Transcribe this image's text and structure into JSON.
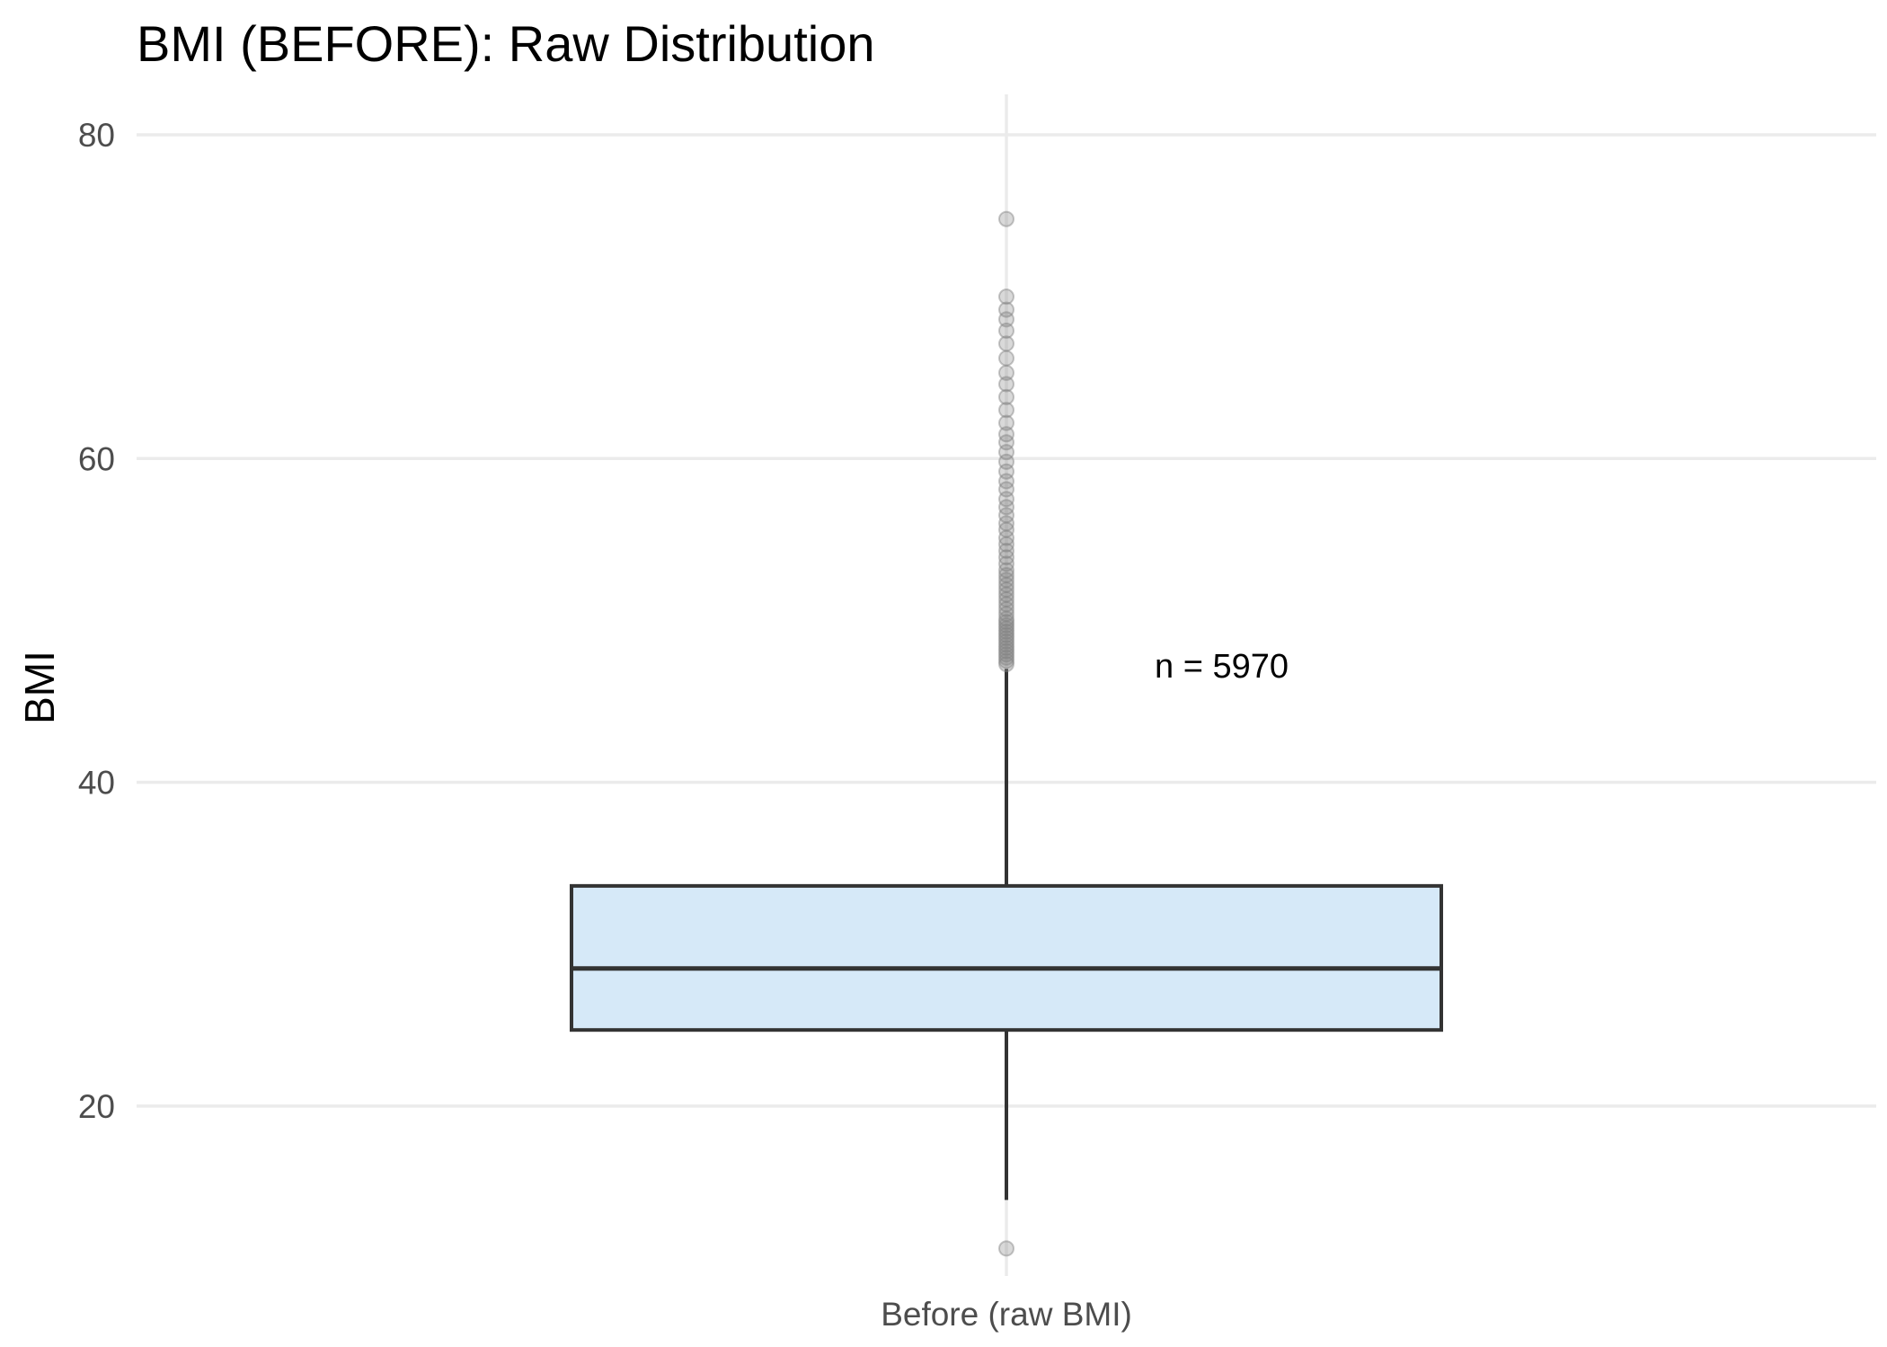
{
  "chart_data": {
    "type": "box",
    "title": "BMI (BEFORE): Raw Distribution",
    "xlabel": "",
    "ylabel": "BMI",
    "categories": [
      "Before (raw BMI)"
    ],
    "ylim": [
      9.5,
      82.5
    ],
    "yticks": [
      20,
      40,
      60,
      80
    ],
    "grid": true,
    "box": {
      "category": "Before (raw BMI)",
      "min": 14.2,
      "q1": 24.7,
      "median": 28.5,
      "q3": 33.6,
      "whisker_high": 47.0,
      "outliers": [
        11.2,
        47.3,
        47.5,
        47.7,
        47.9,
        48.1,
        48.3,
        48.5,
        48.7,
        48.9,
        49.1,
        49.3,
        49.5,
        49.7,
        49.9,
        50.1,
        50.4,
        50.7,
        51.0,
        51.3,
        51.6,
        51.9,
        52.2,
        52.5,
        52.8,
        53.1,
        53.5,
        53.9,
        54.3,
        54.7,
        55.1,
        55.6,
        56.0,
        56.5,
        57.0,
        57.5,
        58.1,
        58.6,
        59.2,
        59.8,
        60.4,
        61.0,
        61.5,
        62.2,
        63.0,
        63.8,
        64.6,
        65.3,
        66.2,
        67.1,
        67.9,
        68.6,
        69.2,
        70.0,
        74.8
      ],
      "fill": "#d6e9f8",
      "stroke": "#333333"
    },
    "annotations": [
      {
        "text": "n = 5970",
        "x": "Before (raw BMI)",
        "y": 47.2
      }
    ],
    "colors": {
      "grid": "#ebebeb",
      "outlier": "#808080",
      "background": "#ffffff"
    }
  }
}
